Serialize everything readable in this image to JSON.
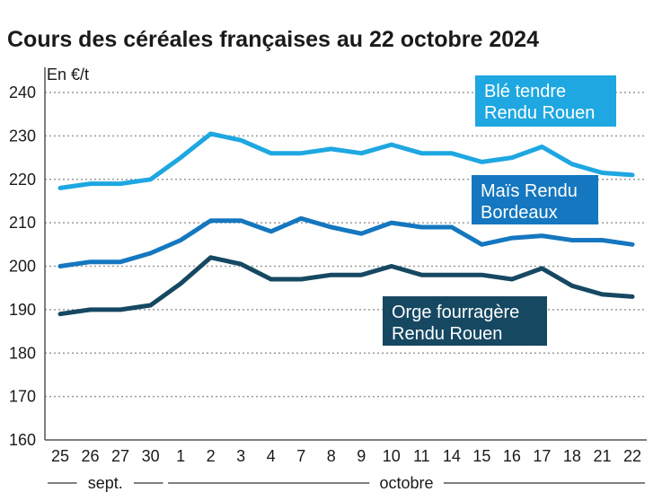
{
  "chart_data": {
    "type": "line",
    "title": "Cours des céréales françaises au 22 octobre 2024",
    "ylabel": "En €/t",
    "ylim": [
      160,
      240
    ],
    "yticks": [
      160,
      170,
      180,
      190,
      200,
      210,
      220,
      230,
      240
    ],
    "grid": true,
    "categories": [
      "25",
      "26",
      "27",
      "30",
      "1",
      "2",
      "3",
      "4",
      "7",
      "8",
      "9",
      "10",
      "11",
      "14",
      "15",
      "16",
      "17",
      "18",
      "21",
      "22"
    ],
    "month_groups": [
      {
        "label": "sept.",
        "from": 0,
        "to": 3
      },
      {
        "label": "octobre",
        "from": 4,
        "to": 19
      }
    ],
    "series": [
      {
        "name": "Blé tendre Rendu Rouen",
        "label_lines": [
          "Blé tendre",
          "Rendu Rouen"
        ],
        "color": "#1ea7e1",
        "values": [
          218,
          219,
          219,
          220,
          225,
          230.5,
          229,
          226,
          226,
          227,
          226,
          228,
          226,
          226,
          224,
          225,
          227.5,
          223.5,
          221.5,
          221
        ]
      },
      {
        "name": "Maïs Rendu Bordeaux",
        "label_lines": [
          "Maïs Rendu",
          "Bordeaux"
        ],
        "color": "#1577bf",
        "values": [
          200,
          201,
          201,
          203,
          206,
          210.5,
          210.5,
          208,
          211,
          209,
          207.5,
          210,
          209,
          209,
          205,
          206.5,
          207,
          206,
          206,
          205
        ]
      },
      {
        "name": "Orge fourragère Rendu Rouen",
        "label_lines": [
          "Orge fourragère",
          "Rendu Rouen"
        ],
        "color": "#164862",
        "values": [
          189,
          190,
          190,
          191,
          196,
          202,
          200.5,
          197,
          197,
          198,
          198,
          200,
          198,
          198,
          198,
          197,
          199.5,
          195.5,
          193.5,
          193
        ]
      }
    ]
  }
}
